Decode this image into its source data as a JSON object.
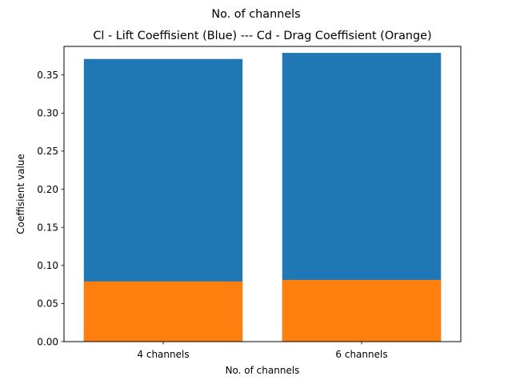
{
  "chart_data": {
    "type": "bar",
    "suptitle": "No. of channels",
    "title": "Cl - Lift Coeffisient (Blue) --- Cd - Drag Coeffisient (Orange)",
    "xlabel": "No. of channels",
    "ylabel": "Coeffisient value",
    "categories": [
      "4 channels",
      "6 channels"
    ],
    "series": [
      {
        "name": "Cl",
        "color": "#1f77b4",
        "values": [
          0.371,
          0.379
        ]
      },
      {
        "name": "Cd",
        "color": "#ff7f0e",
        "values": [
          0.079,
          0.081
        ]
      }
    ],
    "overlay": true,
    "ylim": [
      0,
      0.3875
    ],
    "yticks": [
      "0.00",
      "0.05",
      "0.10",
      "0.15",
      "0.20",
      "0.25",
      "0.30",
      "0.35"
    ],
    "grid": false
  }
}
